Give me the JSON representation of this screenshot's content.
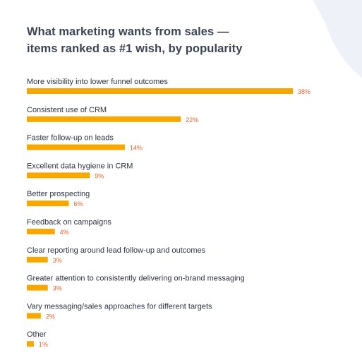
{
  "colors": {
    "bar": "#f7a800",
    "value_text": "#e8622c",
    "label_text": "#2d3342",
    "title_text": "#3b4354",
    "decor": "#eef1f8"
  },
  "chart_data": {
    "type": "bar",
    "orientation": "horizontal",
    "title": "What marketing wants from sales —",
    "subtitle": "items ranked as #1 wish, by popularity",
    "categories": [
      "More visibility into lower funnel outcomes",
      "Consistent use of CRM",
      "Faster follow-up on leads",
      "Excellent data hygiene in CRM",
      "Better prospecting",
      "Feedback on campaigns",
      "Clear reporting around lead follow-up and outcomes",
      "Greater attention to consistently delivering on-brand messaging",
      "Vary messaging/sales approaches for different targets",
      "Other"
    ],
    "values": [
      38,
      22,
      14,
      9,
      6,
      4,
      3,
      3,
      2,
      1
    ],
    "value_labels": [
      "38%",
      "22%",
      "14%",
      "9%",
      "6%",
      "4%",
      "3%",
      "3%",
      "2%",
      "1%"
    ],
    "unit": "%",
    "xlim": [
      0,
      38
    ],
    "grid": false,
    "legend": "none"
  }
}
